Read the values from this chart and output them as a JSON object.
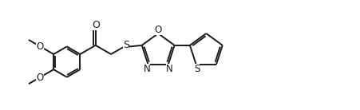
{
  "bg_color": "#ffffff",
  "line_color": "#1a1a1a",
  "line_width": 1.4,
  "font_size": 8,
  "fig_width": 4.51,
  "fig_height": 1.38,
  "dpi": 100,
  "xlim": [
    0,
    10.5
  ],
  "ylim": [
    -0.2,
    3.0
  ]
}
